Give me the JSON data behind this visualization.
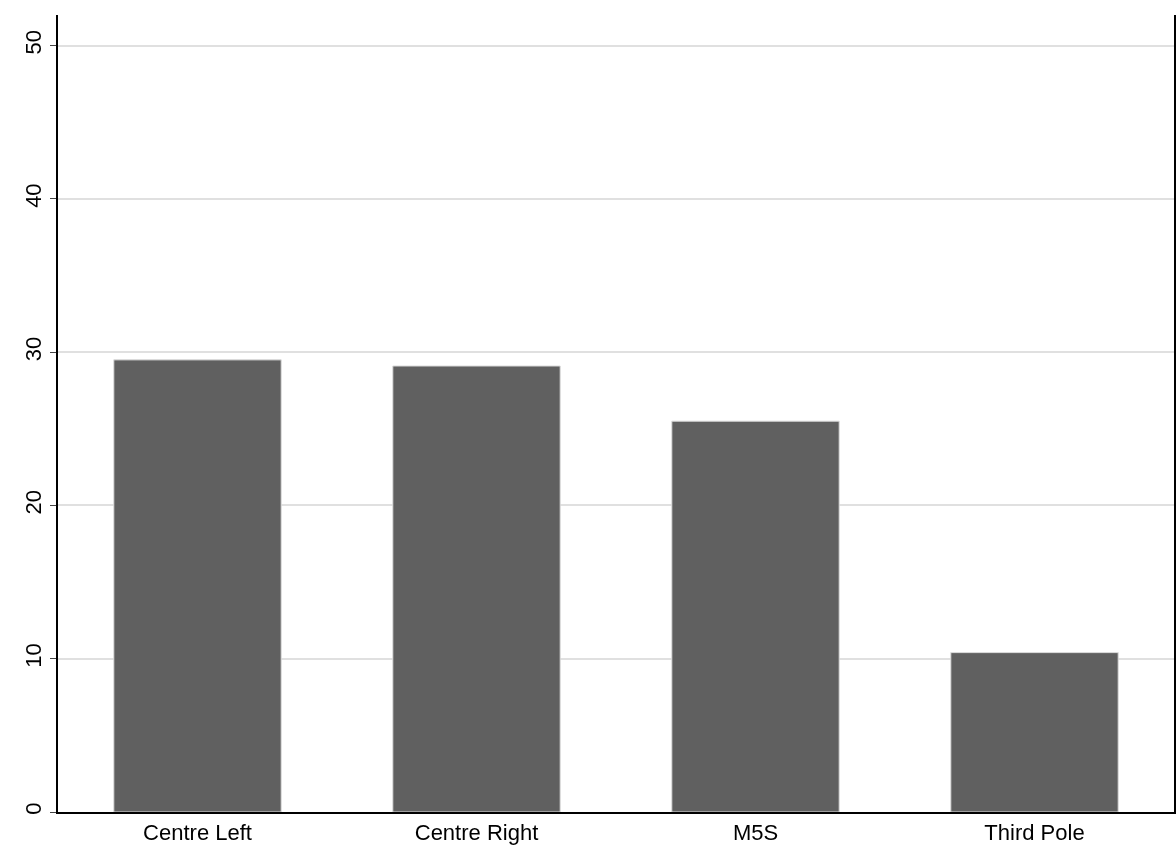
{
  "chart_data": {
    "type": "bar",
    "categories": [
      "Centre Left",
      "Centre Right",
      "M5S",
      "Third Pole"
    ],
    "values": [
      29.5,
      29.1,
      25.5,
      10.4
    ],
    "color": "#606060",
    "ylim": [
      0,
      52
    ],
    "yticks": [
      0,
      10,
      20,
      30,
      40,
      50
    ],
    "grid": "y",
    "legend": false
  }
}
